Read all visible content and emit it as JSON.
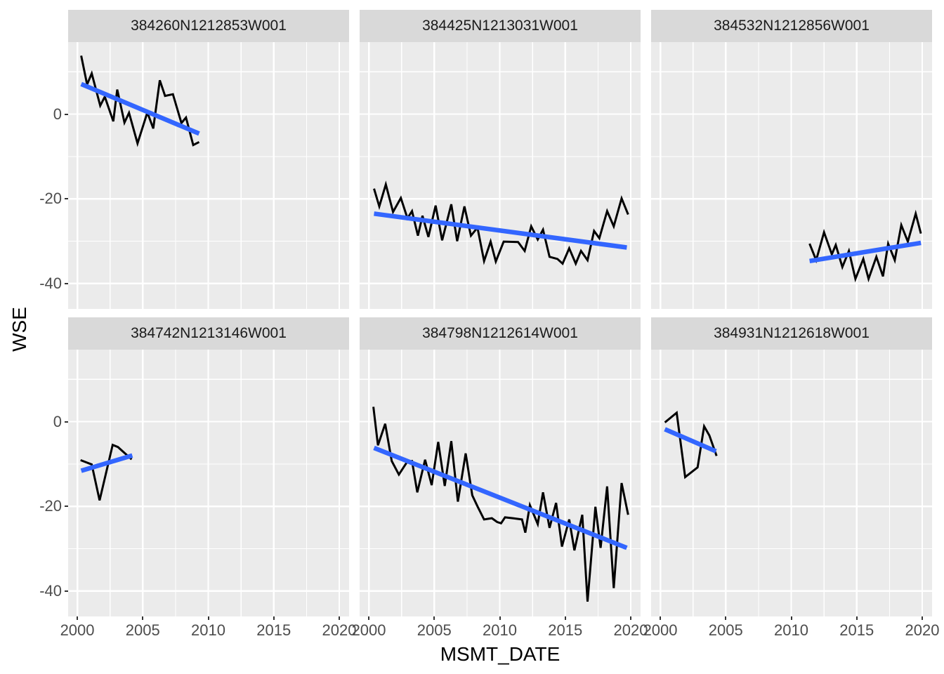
{
  "figure": {
    "background": "#FFFFFF",
    "panel_background": "#EBEBEB",
    "strip_background": "#D9D9D9",
    "grid_color": "#FFFFFF",
    "series_color": "#000000",
    "trend_color": "#3366FF",
    "axis_text_color": "#4D4D4D",
    "tick_color": "#333333"
  },
  "chart_data": {
    "type": "line",
    "title": "",
    "xlabel": "MSMT_DATE",
    "ylabel": "WSE",
    "grid": true,
    "legend": "none",
    "facet_rows": 2,
    "facet_cols": 3,
    "xlim": [
      1999.3,
      2020.75
    ],
    "ylim": [
      -46,
      17
    ],
    "x_ticks": [
      2000,
      2005,
      2010,
      2015,
      2020
    ],
    "x_tick_labels": [
      "2000",
      "2005",
      "2010",
      "2015",
      "2020"
    ],
    "y_ticks": [
      0,
      -20,
      -40
    ],
    "y_tick_labels": [
      "0",
      "-20",
      "-40"
    ],
    "x_minor": [
      2002.5,
      2007.5,
      2012.5,
      2017.5
    ],
    "y_minor": [
      10,
      -10,
      -30
    ],
    "facets": [
      {
        "label": "384260N1212853W001",
        "line": [
          [
            2000.3,
            13.8
          ],
          [
            2000.75,
            7.0
          ],
          [
            2001.1,
            9.6
          ],
          [
            2001.75,
            2.0
          ],
          [
            2002.1,
            4.1
          ],
          [
            2002.75,
            -1.7
          ],
          [
            2003.05,
            5.8
          ],
          [
            2003.6,
            -2.0
          ],
          [
            2003.95,
            0.3
          ],
          [
            2004.6,
            -6.9
          ],
          [
            2005.35,
            0.4
          ],
          [
            2005.8,
            -3.4
          ],
          [
            2006.3,
            8.0
          ],
          [
            2006.7,
            4.3
          ],
          [
            2007.3,
            4.7
          ],
          [
            2007.95,
            -2.1
          ],
          [
            2008.3,
            -0.8
          ],
          [
            2008.85,
            -7.3
          ],
          [
            2009.3,
            -6.6
          ]
        ],
        "trend": [
          [
            2000.3,
            7.1
          ],
          [
            2009.3,
            -4.6
          ]
        ]
      },
      {
        "label": "384425N1213031W001",
        "line": [
          [
            2000.4,
            -17.6
          ],
          [
            2000.8,
            -21.8
          ],
          [
            2001.3,
            -16.6
          ],
          [
            2001.85,
            -23.1
          ],
          [
            2002.45,
            -19.8
          ],
          [
            2002.95,
            -24.6
          ],
          [
            2003.3,
            -22.9
          ],
          [
            2003.75,
            -28.7
          ],
          [
            2004.1,
            -24.0
          ],
          [
            2004.55,
            -29.0
          ],
          [
            2005.1,
            -21.6
          ],
          [
            2005.6,
            -29.8
          ],
          [
            2006.3,
            -21.3
          ],
          [
            2006.75,
            -30.0
          ],
          [
            2007.3,
            -21.8
          ],
          [
            2007.8,
            -28.7
          ],
          [
            2008.3,
            -26.8
          ],
          [
            2008.8,
            -34.7
          ],
          [
            2009.3,
            -30.1
          ],
          [
            2009.7,
            -34.8
          ],
          [
            2010.3,
            -30.1
          ],
          [
            2011.4,
            -30.2
          ],
          [
            2011.9,
            -32.3
          ],
          [
            2012.4,
            -26.5
          ],
          [
            2012.9,
            -29.6
          ],
          [
            2013.3,
            -27.3
          ],
          [
            2013.8,
            -33.7
          ],
          [
            2014.4,
            -34.2
          ],
          [
            2014.8,
            -35.3
          ],
          [
            2015.3,
            -31.7
          ],
          [
            2015.8,
            -35.3
          ],
          [
            2016.2,
            -32.3
          ],
          [
            2016.7,
            -34.5
          ],
          [
            2017.2,
            -27.6
          ],
          [
            2017.6,
            -29.3
          ],
          [
            2018.2,
            -22.9
          ],
          [
            2018.7,
            -26.5
          ],
          [
            2019.3,
            -19.9
          ],
          [
            2019.8,
            -23.7
          ]
        ],
        "trend": [
          [
            2000.4,
            -23.5
          ],
          [
            2019.7,
            -31.5
          ]
        ]
      },
      {
        "label": "384532N1212856W001",
        "line": [
          [
            2011.4,
            -30.6
          ],
          [
            2011.9,
            -34.5
          ],
          [
            2012.5,
            -27.9
          ],
          [
            2013.1,
            -33.1
          ],
          [
            2013.4,
            -30.9
          ],
          [
            2013.9,
            -36.1
          ],
          [
            2014.4,
            -32.3
          ],
          [
            2014.9,
            -38.9
          ],
          [
            2015.5,
            -34.2
          ],
          [
            2015.9,
            -38.9
          ],
          [
            2016.5,
            -33.7
          ],
          [
            2017.0,
            -38.3
          ],
          [
            2017.4,
            -30.6
          ],
          [
            2017.9,
            -34.5
          ],
          [
            2018.4,
            -26.2
          ],
          [
            2018.9,
            -30.1
          ],
          [
            2019.5,
            -23.5
          ],
          [
            2019.9,
            -28.2
          ]
        ],
        "trend": [
          [
            2011.4,
            -34.7
          ],
          [
            2019.9,
            -30.4
          ]
        ]
      },
      {
        "label": "384742N1213146W001",
        "line": [
          [
            2000.25,
            -9.1
          ],
          [
            2001.1,
            -10.1
          ],
          [
            2001.7,
            -18.6
          ],
          [
            2002.7,
            -5.5
          ],
          [
            2003.1,
            -6.0
          ],
          [
            2004.15,
            -8.9
          ]
        ],
        "trend": [
          [
            2000.3,
            -11.6
          ],
          [
            2004.2,
            -8.0
          ]
        ]
      },
      {
        "label": "384798N1212614W001",
        "line": [
          [
            2000.35,
            3.5
          ],
          [
            2000.7,
            -5.6
          ],
          [
            2001.25,
            -0.5
          ],
          [
            2001.75,
            -9.3
          ],
          [
            2002.3,
            -12.5
          ],
          [
            2002.95,
            -9.4
          ],
          [
            2003.3,
            -9.3
          ],
          [
            2003.7,
            -16.7
          ],
          [
            2004.3,
            -9.0
          ],
          [
            2004.8,
            -15.0
          ],
          [
            2005.3,
            -4.8
          ],
          [
            2005.8,
            -15.2
          ],
          [
            2006.3,
            -4.6
          ],
          [
            2006.8,
            -18.9
          ],
          [
            2007.4,
            -7.5
          ],
          [
            2007.9,
            -17.4
          ],
          [
            2008.3,
            -20.0
          ],
          [
            2008.8,
            -23.1
          ],
          [
            2009.4,
            -22.8
          ],
          [
            2009.8,
            -23.7
          ],
          [
            2010.1,
            -24.0
          ],
          [
            2010.4,
            -22.6
          ],
          [
            2011.0,
            -22.8
          ],
          [
            2011.7,
            -23.1
          ],
          [
            2011.95,
            -26.2
          ],
          [
            2012.3,
            -19.7
          ],
          [
            2012.9,
            -24.2
          ],
          [
            2013.3,
            -16.7
          ],
          [
            2013.8,
            -25.1
          ],
          [
            2014.3,
            -19.2
          ],
          [
            2014.75,
            -29.5
          ],
          [
            2015.3,
            -23.1
          ],
          [
            2015.7,
            -30.4
          ],
          [
            2016.3,
            -22.0
          ],
          [
            2016.7,
            -42.5
          ],
          [
            2017.3,
            -20.1
          ],
          [
            2017.7,
            -29.8
          ],
          [
            2018.2,
            -15.3
          ],
          [
            2018.7,
            -39.3
          ],
          [
            2019.3,
            -14.5
          ],
          [
            2019.8,
            -22.0
          ]
        ],
        "trend": [
          [
            2000.4,
            -6.2
          ],
          [
            2019.7,
            -29.8
          ]
        ]
      },
      {
        "label": "384931N1212618W001",
        "line": [
          [
            2000.35,
            -0.2
          ],
          [
            2001.25,
            2.1
          ],
          [
            2001.9,
            -13.1
          ],
          [
            2002.85,
            -10.8
          ],
          [
            2003.35,
            -1.1
          ],
          [
            2003.75,
            -3.3
          ],
          [
            2004.3,
            -8.1
          ]
        ],
        "trend": [
          [
            2000.35,
            -1.8
          ],
          [
            2004.25,
            -7.0
          ]
        ]
      }
    ]
  }
}
